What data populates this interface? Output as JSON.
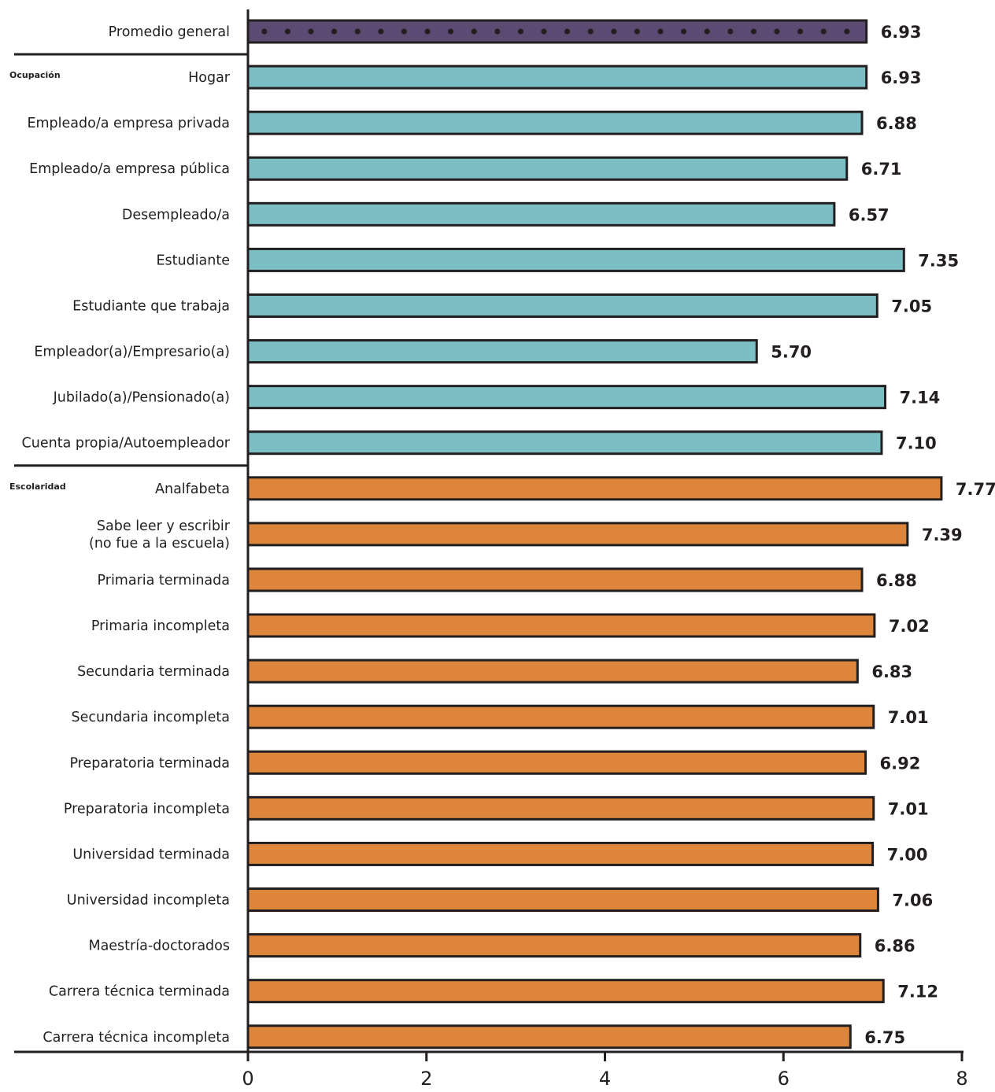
{
  "chart_data": {
    "type": "bar",
    "orientation": "horizontal",
    "xlim": [
      0,
      8
    ],
    "xticks": [
      "0",
      "2",
      "4",
      "6",
      "8"
    ],
    "grid": false,
    "colors": {
      "promedio": "#5c4a72",
      "ocupacion": "#7bbfc4",
      "escolaridad": "#dd853a",
      "outline": "#231f20"
    },
    "groups": [
      {
        "name": "",
        "style": "promedio",
        "categories": [
          {
            "label": [
              "Promedio general"
            ],
            "value": 6.93,
            "value_label": "6.93"
          }
        ]
      },
      {
        "name": "Ocupación",
        "style": "ocupacion",
        "categories": [
          {
            "label": [
              "Hogar"
            ],
            "value": 6.93,
            "value_label": "6.93"
          },
          {
            "label": [
              "Empleado/a empresa privada"
            ],
            "value": 6.88,
            "value_label": "6.88"
          },
          {
            "label": [
              "Empleado/a empresa pública"
            ],
            "value": 6.71,
            "value_label": "6.71"
          },
          {
            "label": [
              "Desempleado/a"
            ],
            "value": 6.57,
            "value_label": "6.57"
          },
          {
            "label": [
              "Estudiante"
            ],
            "value": 7.35,
            "value_label": "7.35"
          },
          {
            "label": [
              "Estudiante que trabaja"
            ],
            "value": 7.05,
            "value_label": "7.05"
          },
          {
            "label": [
              "Empleador(a)/Empresario(a)"
            ],
            "value": 5.7,
            "value_label": "5.70"
          },
          {
            "label": [
              "Jubilado(a)/Pensionado(a)"
            ],
            "value": 7.14,
            "value_label": "7.14"
          },
          {
            "label": [
              "Cuenta propia/Autoempleador"
            ],
            "value": 7.1,
            "value_label": "7.10"
          }
        ]
      },
      {
        "name": "Escolaridad",
        "style": "escolaridad",
        "categories": [
          {
            "label": [
              "Analfabeta"
            ],
            "value": 7.77,
            "value_label": "7.77"
          },
          {
            "label": [
              "Sabe leer y escribir",
              "(no fue a la escuela)"
            ],
            "value": 7.39,
            "value_label": "7.39"
          },
          {
            "label": [
              "Primaria terminada"
            ],
            "value": 6.88,
            "value_label": "6.88"
          },
          {
            "label": [
              "Primaria incompleta"
            ],
            "value": 7.02,
            "value_label": "7.02"
          },
          {
            "label": [
              "Secundaria terminada"
            ],
            "value": 6.83,
            "value_label": "6.83"
          },
          {
            "label": [
              "Secundaria incompleta"
            ],
            "value": 7.01,
            "value_label": "7.01"
          },
          {
            "label": [
              "Preparatoria terminada"
            ],
            "value": 6.92,
            "value_label": "6.92"
          },
          {
            "label": [
              "Preparatoria incompleta"
            ],
            "value": 7.01,
            "value_label": "7.01"
          },
          {
            "label": [
              "Universidad terminada"
            ],
            "value": 7.0,
            "value_label": "7.00"
          },
          {
            "label": [
              "Universidad incompleta"
            ],
            "value": 7.06,
            "value_label": "7.06"
          },
          {
            "label": [
              "Maestría-doctorados"
            ],
            "value": 6.86,
            "value_label": "6.86"
          },
          {
            "label": [
              "Carrera técnica terminada"
            ],
            "value": 7.12,
            "value_label": "7.12"
          },
          {
            "label": [
              "Carrera técnica incompleta"
            ],
            "value": 6.75,
            "value_label": "6.75"
          }
        ]
      }
    ]
  }
}
